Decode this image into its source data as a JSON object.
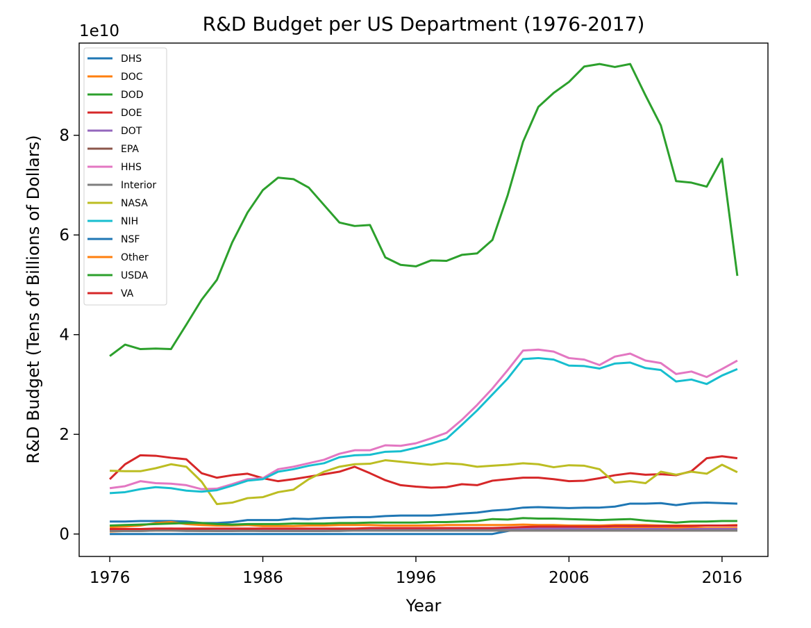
{
  "chart_data": {
    "type": "line",
    "title": "R&D Budget per US Department (1976-2017)",
    "xlabel": "Year",
    "ylabel": "R&D Budget (Tens of Billions of Dollars)",
    "y_offset_label": "1e10",
    "xlim": [
      1974,
      2019
    ],
    "ylim": [
      -0.45,
      9.85
    ],
    "y_scale": 10000000000,
    "xticks": [
      1976,
      1986,
      1996,
      2006,
      2016
    ],
    "yticks": [
      0,
      2,
      4,
      6,
      8
    ],
    "grid": false,
    "legend": "top-left",
    "x": [
      1976,
      1977,
      1978,
      1979,
      1980,
      1981,
      1982,
      1983,
      1984,
      1985,
      1986,
      1987,
      1988,
      1989,
      1990,
      1991,
      1992,
      1993,
      1994,
      1995,
      1996,
      1997,
      1998,
      1999,
      2000,
      2001,
      2002,
      2003,
      2004,
      2005,
      2006,
      2007,
      2008,
      2009,
      2010,
      2011,
      2012,
      2013,
      2014,
      2015,
      2016,
      2017
    ],
    "series": [
      {
        "name": "DHS",
        "color": "#1f77b4",
        "values": [
          0,
          0,
          0,
          0,
          0,
          0,
          0,
          0,
          0,
          0,
          0,
          0,
          0,
          0,
          0,
          0,
          0,
          0,
          0,
          0,
          0,
          0,
          0,
          0,
          0,
          0,
          0.06,
          0.12,
          0.11,
          0.13,
          0.1,
          0.1,
          0.1,
          0.1,
          0.12,
          0.1,
          0.08,
          0.08,
          0.08,
          0.08,
          0.08,
          0.08
        ]
      },
      {
        "name": "DOC",
        "color": "#ff7f0e",
        "values": [
          0.05,
          0.06,
          0.06,
          0.07,
          0.07,
          0.07,
          0.06,
          0.06,
          0.07,
          0.07,
          0.07,
          0.07,
          0.07,
          0.07,
          0.08,
          0.08,
          0.09,
          0.09,
          0.1,
          0.1,
          0.1,
          0.1,
          0.1,
          0.1,
          0.1,
          0.11,
          0.11,
          0.12,
          0.11,
          0.11,
          0.11,
          0.11,
          0.11,
          0.12,
          0.12,
          0.12,
          0.12,
          0.12,
          0.12,
          0.12,
          0.12,
          0.12
        ]
      },
      {
        "name": "DOD",
        "color": "#2ca02c",
        "values": [
          3.57,
          3.8,
          3.71,
          3.72,
          3.71,
          4.2,
          4.7,
          5.1,
          5.85,
          6.45,
          6.9,
          7.15,
          7.12,
          6.95,
          6.6,
          6.25,
          6.18,
          6.2,
          5.55,
          5.4,
          5.37,
          5.49,
          5.48,
          5.6,
          5.63,
          5.9,
          6.8,
          7.87,
          8.57,
          8.85,
          9.07,
          9.38,
          9.43,
          9.37,
          9.43,
          8.8,
          8.2,
          7.08,
          7.05,
          6.97,
          7.53,
          5.18
        ]
      },
      {
        "name": "DOE",
        "color": "#d62728",
        "values": [
          1.1,
          1.4,
          1.58,
          1.57,
          1.53,
          1.5,
          1.22,
          1.13,
          1.18,
          1.21,
          1.12,
          1.06,
          1.1,
          1.15,
          1.2,
          1.25,
          1.35,
          1.22,
          1.08,
          0.98,
          0.95,
          0.93,
          0.94,
          1.0,
          0.98,
          1.07,
          1.1,
          1.13,
          1.13,
          1.1,
          1.06,
          1.07,
          1.12,
          1.18,
          1.22,
          1.19,
          1.2,
          1.18,
          1.26,
          1.52,
          1.56,
          1.52
        ]
      },
      {
        "name": "DOT",
        "color": "#9467bd",
        "values": [
          0.1,
          0.1,
          0.1,
          0.1,
          0.11,
          0.1,
          0.09,
          0.09,
          0.09,
          0.1,
          0.09,
          0.08,
          0.08,
          0.09,
          0.09,
          0.1,
          0.1,
          0.1,
          0.1,
          0.1,
          0.1,
          0.09,
          0.1,
          0.1,
          0.11,
          0.11,
          0.11,
          0.11,
          0.11,
          0.11,
          0.11,
          0.1,
          0.1,
          0.1,
          0.1,
          0.1,
          0.1,
          0.09,
          0.1,
          0.1,
          0.1,
          0.1
        ]
      },
      {
        "name": "EPA",
        "color": "#8c564b",
        "values": [
          0.08,
          0.08,
          0.09,
          0.09,
          0.1,
          0.09,
          0.07,
          0.06,
          0.06,
          0.07,
          0.06,
          0.06,
          0.06,
          0.06,
          0.06,
          0.07,
          0.07,
          0.07,
          0.07,
          0.07,
          0.07,
          0.07,
          0.07,
          0.07,
          0.07,
          0.07,
          0.07,
          0.07,
          0.07,
          0.07,
          0.07,
          0.07,
          0.07,
          0.07,
          0.07,
          0.07,
          0.07,
          0.07,
          0.07,
          0.07,
          0.07,
          0.07
        ]
      },
      {
        "name": "HHS",
        "color": "#e377c2",
        "values": [
          0.92,
          0.96,
          1.06,
          1.02,
          1.01,
          0.98,
          0.9,
          0.91,
          1.0,
          1.1,
          1.12,
          1.3,
          1.35,
          1.42,
          1.49,
          1.61,
          1.68,
          1.68,
          1.78,
          1.77,
          1.82,
          1.92,
          2.03,
          2.29,
          2.59,
          2.92,
          3.29,
          3.68,
          3.7,
          3.66,
          3.53,
          3.5,
          3.39,
          3.56,
          3.62,
          3.48,
          3.43,
          3.21,
          3.26,
          3.15,
          3.31,
          3.48
        ]
      },
      {
        "name": "Interior",
        "color": "#7f7f7f",
        "values": [
          0.06,
          0.06,
          0.06,
          0.07,
          0.07,
          0.06,
          0.06,
          0.06,
          0.06,
          0.06,
          0.06,
          0.06,
          0.06,
          0.06,
          0.06,
          0.06,
          0.07,
          0.07,
          0.07,
          0.07,
          0.07,
          0.07,
          0.07,
          0.07,
          0.07,
          0.07,
          0.07,
          0.07,
          0.07,
          0.07,
          0.07,
          0.07,
          0.07,
          0.07,
          0.07,
          0.07,
          0.07,
          0.07,
          0.07,
          0.07,
          0.07,
          0.07
        ]
      },
      {
        "name": "NASA",
        "color": "#bcbd22",
        "values": [
          1.27,
          1.26,
          1.26,
          1.32,
          1.4,
          1.35,
          1.05,
          0.6,
          0.63,
          0.72,
          0.74,
          0.84,
          0.89,
          1.1,
          1.25,
          1.35,
          1.4,
          1.41,
          1.48,
          1.45,
          1.42,
          1.39,
          1.42,
          1.4,
          1.35,
          1.37,
          1.39,
          1.42,
          1.4,
          1.34,
          1.38,
          1.37,
          1.3,
          1.03,
          1.06,
          1.02,
          1.25,
          1.19,
          1.25,
          1.21,
          1.39,
          1.24
        ]
      },
      {
        "name": "NIH",
        "color": "#17becf",
        "values": [
          0.82,
          0.84,
          0.9,
          0.94,
          0.92,
          0.87,
          0.85,
          0.88,
          0.97,
          1.07,
          1.1,
          1.25,
          1.3,
          1.37,
          1.42,
          1.54,
          1.58,
          1.59,
          1.65,
          1.66,
          1.73,
          1.81,
          1.91,
          2.19,
          2.48,
          2.8,
          3.12,
          3.51,
          3.53,
          3.5,
          3.38,
          3.37,
          3.32,
          3.42,
          3.44,
          3.33,
          3.29,
          3.06,
          3.1,
          3.01,
          3.18,
          3.31
        ]
      },
      {
        "name": "NSF",
        "color": "#1f77b4",
        "values": [
          0.25,
          0.25,
          0.26,
          0.26,
          0.26,
          0.25,
          0.22,
          0.22,
          0.24,
          0.28,
          0.28,
          0.28,
          0.31,
          0.3,
          0.32,
          0.33,
          0.34,
          0.34,
          0.36,
          0.37,
          0.37,
          0.37,
          0.39,
          0.41,
          0.43,
          0.47,
          0.49,
          0.53,
          0.54,
          0.53,
          0.52,
          0.53,
          0.53,
          0.55,
          0.61,
          0.61,
          0.62,
          0.58,
          0.62,
          0.63,
          0.62,
          0.61
        ]
      },
      {
        "name": "Other",
        "color": "#ff7f0e",
        "values": [
          0.14,
          0.15,
          0.17,
          0.22,
          0.24,
          0.2,
          0.18,
          0.17,
          0.17,
          0.18,
          0.16,
          0.16,
          0.16,
          0.17,
          0.17,
          0.18,
          0.18,
          0.18,
          0.17,
          0.17,
          0.17,
          0.17,
          0.18,
          0.18,
          0.18,
          0.18,
          0.18,
          0.19,
          0.18,
          0.18,
          0.17,
          0.17,
          0.17,
          0.18,
          0.18,
          0.18,
          0.17,
          0.17,
          0.17,
          0.17,
          0.17,
          0.18
        ]
      },
      {
        "name": "USDA",
        "color": "#2ca02c",
        "values": [
          0.17,
          0.18,
          0.19,
          0.2,
          0.21,
          0.22,
          0.22,
          0.2,
          0.19,
          0.2,
          0.2,
          0.2,
          0.21,
          0.21,
          0.21,
          0.22,
          0.22,
          0.23,
          0.23,
          0.23,
          0.23,
          0.24,
          0.24,
          0.25,
          0.26,
          0.3,
          0.29,
          0.32,
          0.31,
          0.31,
          0.3,
          0.29,
          0.28,
          0.29,
          0.3,
          0.27,
          0.25,
          0.23,
          0.25,
          0.25,
          0.26,
          0.26
        ]
      },
      {
        "name": "VA",
        "color": "#d62728",
        "values": [
          0.1,
          0.1,
          0.1,
          0.11,
          0.11,
          0.11,
          0.11,
          0.11,
          0.11,
          0.11,
          0.11,
          0.11,
          0.11,
          0.11,
          0.11,
          0.11,
          0.11,
          0.12,
          0.12,
          0.12,
          0.12,
          0.12,
          0.12,
          0.12,
          0.12,
          0.12,
          0.13,
          0.14,
          0.15,
          0.15,
          0.15,
          0.15,
          0.15,
          0.16,
          0.16,
          0.16,
          0.16,
          0.16,
          0.16,
          0.17,
          0.17,
          0.17
        ]
      }
    ]
  }
}
